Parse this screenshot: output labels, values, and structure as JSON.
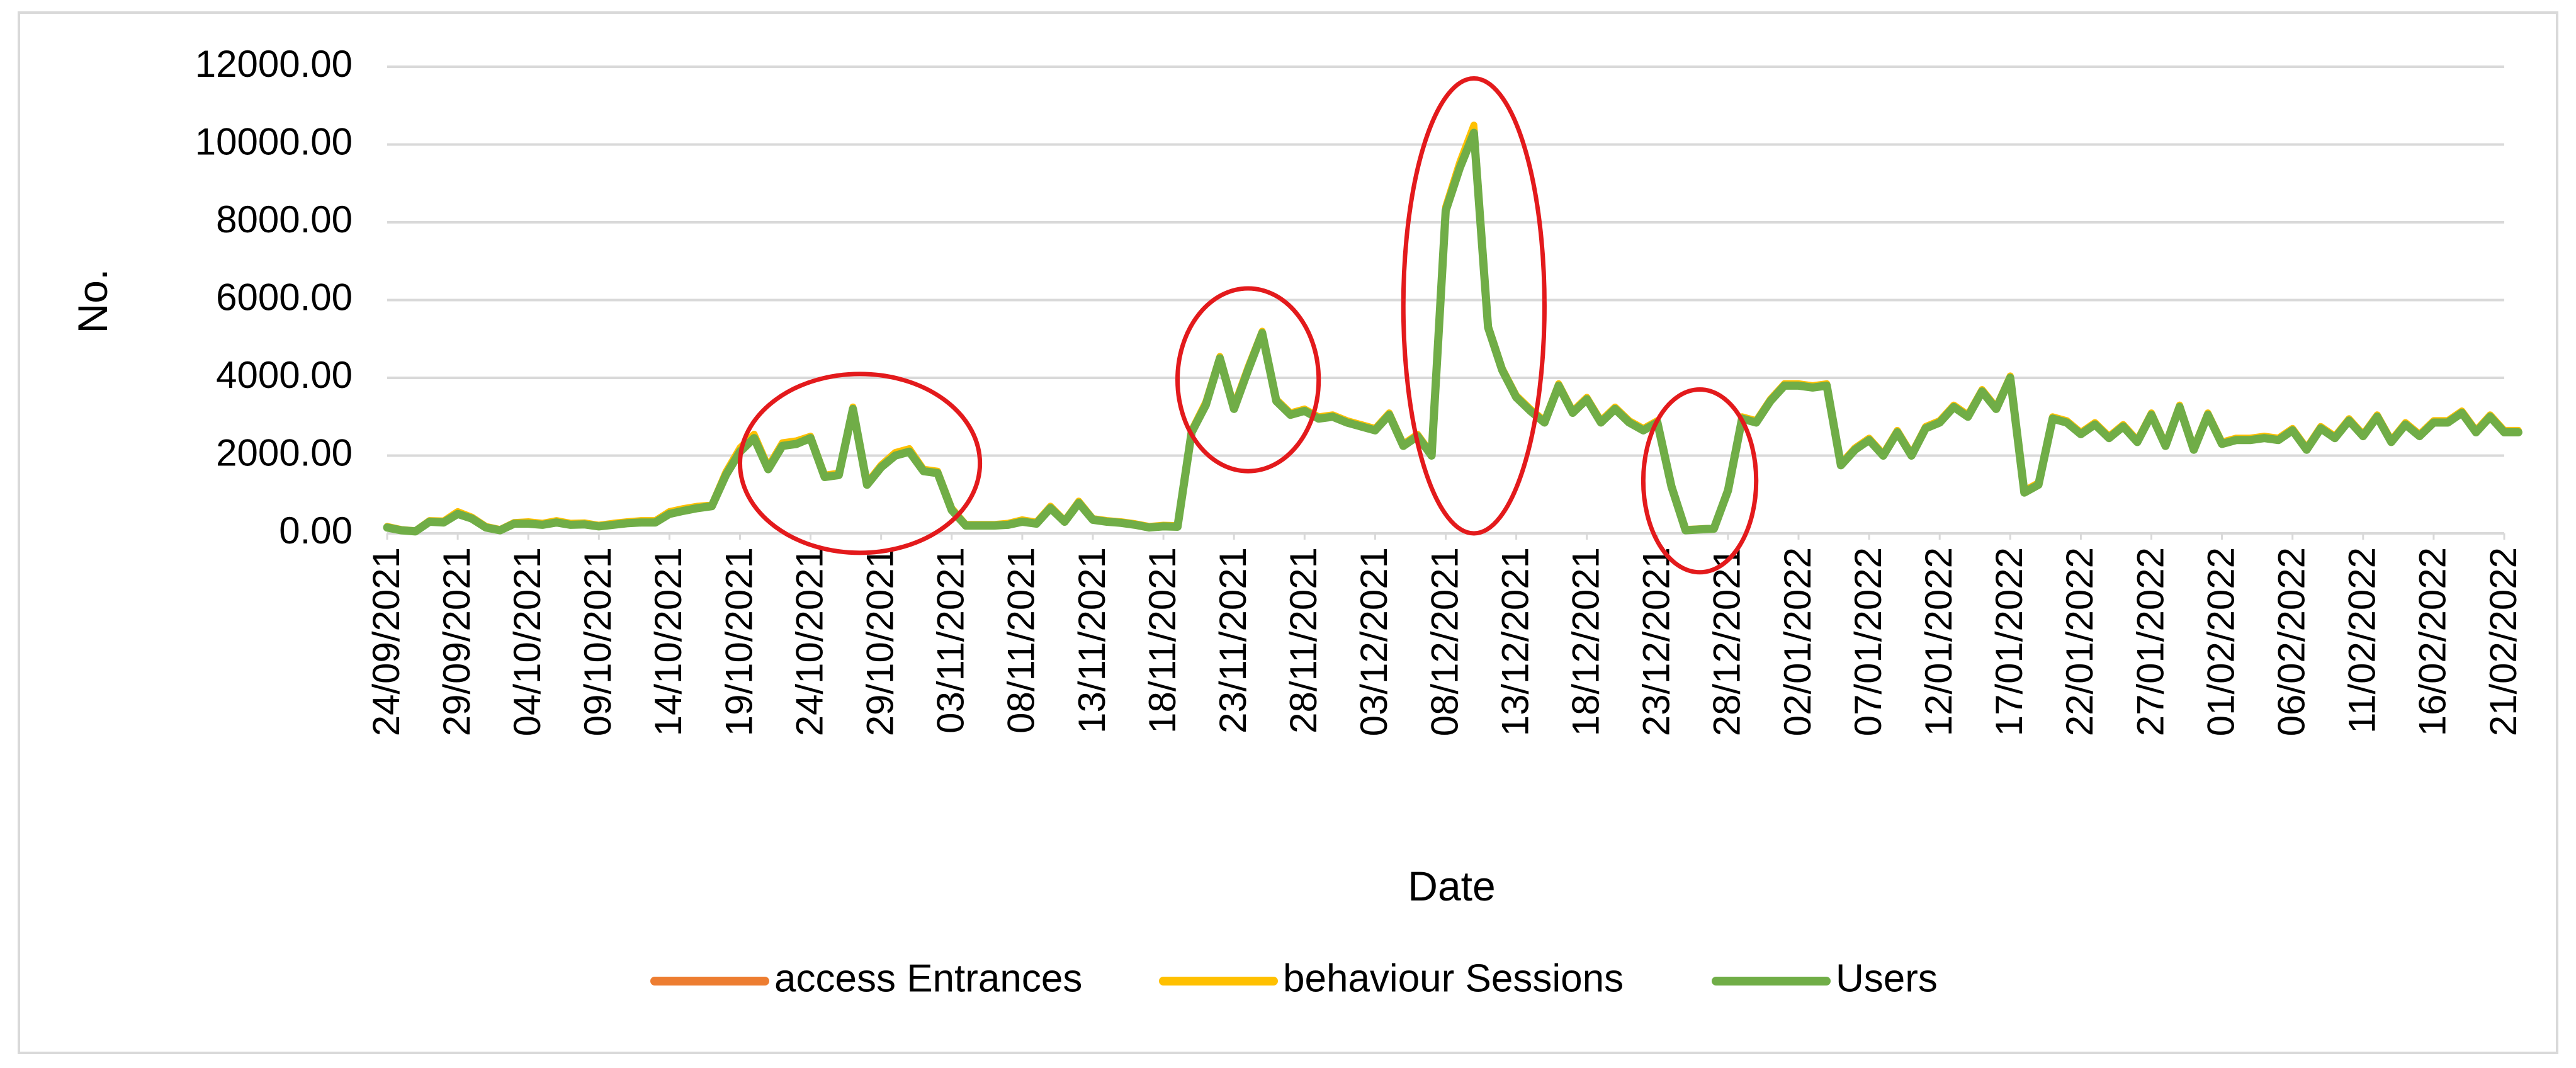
{
  "chart_data": {
    "type": "line",
    "xlabel": "Date",
    "ylabel": "No.",
    "ylim": [
      0,
      12000
    ],
    "y_ticks": [
      "0.00",
      "2000.00",
      "4000.00",
      "6000.00",
      "8000.00",
      "10000.00",
      "12000.00"
    ],
    "grid": "horizontal",
    "legend_position": "bottom",
    "x_tick_labels": [
      "24/09/2021",
      "29/09/2021",
      "04/10/2021",
      "09/10/2021",
      "14/10/2021",
      "19/10/2021",
      "24/10/2021",
      "29/10/2021",
      "03/11/2021",
      "08/11/2021",
      "13/11/2021",
      "18/11/2021",
      "23/11/2021",
      "28/11/2021",
      "03/12/2021",
      "08/12/2021",
      "13/12/2021",
      "18/12/2021",
      "23/12/2021",
      "28/12/2021",
      "02/01/2022",
      "07/01/2022",
      "12/01/2022",
      "17/01/2022",
      "22/01/2022",
      "27/01/2022",
      "01/02/2022",
      "06/02/2022",
      "11/02/2022",
      "16/02/2022",
      "21/02/2022"
    ],
    "x_start": "24/09/2021",
    "x_end": "21/02/2022",
    "series": [
      {
        "name": "access Entrances",
        "color": "#ed7d31",
        "values": [
          150,
          80,
          50,
          300,
          280,
          500,
          380,
          150,
          80,
          250,
          250,
          220,
          280,
          220,
          230,
          180,
          220,
          260,
          280,
          280,
          500,
          580,
          650,
          700,
          1500,
          2100,
          2450,
          1650,
          2250,
          2300,
          2450,
          1450,
          1500,
          3200,
          1250,
          1700,
          2000,
          2100,
          1600,
          1550,
          600,
          200,
          200,
          200,
          220,
          300,
          250,
          650,
          300,
          780,
          350,
          300,
          270,
          220,
          150,
          180,
          170,
          2600,
          3300,
          4500,
          3200,
          4200,
          5150,
          3400,
          3050,
          3150,
          2950,
          3000,
          2850,
          2750,
          2650,
          3050,
          2250,
          2500,
          2000,
          8300,
          9400,
          10350,
          5300,
          4200,
          3500,
          3150,
          2850,
          3800,
          3100,
          3450,
          2850,
          3200,
          2850,
          2650,
          2850,
          1200,
          80,
          100,
          120,
          1100,
          2950,
          2850,
          3400,
          3800,
          3800,
          3750,
          3800,
          1750,
          2150,
          2400,
          2000,
          2600,
          2000,
          2700,
          2850,
          3250,
          3000,
          3650,
          3200,
          4000,
          1050,
          1250,
          2950,
          2850,
          2550,
          2800,
          2450,
          2750,
          2350,
          3050,
          2250,
          3250,
          2150,
          3050,
          2300,
          2400,
          2400,
          2450,
          2400,
          2650,
          2150,
          2700,
          2450,
          2900,
          2500,
          3000,
          2350,
          2800,
          2500,
          2850,
          2850,
          3100,
          2600,
          3000,
          2600,
          2600
        ]
      },
      {
        "name": "behaviour Sessions",
        "color": "#ffc000",
        "values": [
          180,
          100,
          70,
          330,
          320,
          560,
          420,
          180,
          100,
          280,
          300,
          260,
          330,
          260,
          270,
          210,
          260,
          300,
          330,
          330,
          560,
          640,
          700,
          730,
          1580,
          2200,
          2550,
          1720,
          2330,
          2380,
          2500,
          1500,
          1550,
          3250,
          1300,
          1760,
          2080,
          2180,
          1650,
          1600,
          650,
          230,
          230,
          230,
          260,
          350,
          290,
          700,
          330,
          830,
          380,
          330,
          300,
          250,
          180,
          210,
          200,
          2650,
          3380,
          4550,
          3280,
          4280,
          5200,
          3450,
          3100,
          3200,
          3000,
          3050,
          2900,
          2800,
          2700,
          3100,
          2300,
          2550,
          2050,
          8400,
          9550,
          10500,
          5350,
          4250,
          3550,
          3200,
          2900,
          3850,
          3150,
          3500,
          2900,
          3250,
          2900,
          2700,
          2900,
          1250,
          100,
          120,
          140,
          1150,
          3000,
          2900,
          3450,
          3850,
          3850,
          3800,
          3850,
          1800,
          2200,
          2450,
          2050,
          2650,
          2050,
          2750,
          2900,
          3300,
          3050,
          3700,
          3250,
          4050,
          1100,
          1300,
          3000,
          2900,
          2600,
          2850,
          2500,
          2800,
          2400,
          3100,
          2300,
          3300,
          2200,
          3100,
          2350,
          2450,
          2450,
          2500,
          2450,
          2700,
          2200,
          2750,
          2500,
          2950,
          2550,
          3050,
          2400,
          2850,
          2550,
          2900,
          2900,
          3150,
          2650,
          3050,
          2650,
          2650
        ]
      },
      {
        "name": "Users",
        "color": "#70ad47",
        "values": [
          150,
          80,
          50,
          300,
          280,
          500,
          380,
          150,
          80,
          250,
          250,
          220,
          280,
          220,
          230,
          180,
          220,
          260,
          280,
          280,
          500,
          580,
          650,
          700,
          1500,
          2100,
          2450,
          1650,
          2250,
          2300,
          2450,
          1450,
          1500,
          3200,
          1250,
          1700,
          2000,
          2100,
          1600,
          1550,
          600,
          200,
          200,
          200,
          220,
          300,
          250,
          650,
          300,
          780,
          350,
          300,
          270,
          220,
          150,
          180,
          170,
          2600,
          3300,
          4500,
          3200,
          4200,
          5150,
          3400,
          3050,
          3150,
          2950,
          3000,
          2850,
          2750,
          2650,
          3050,
          2250,
          2500,
          2000,
          8300,
          9400,
          10300,
          5300,
          4200,
          3500,
          3150,
          2850,
          3800,
          3100,
          3450,
          2850,
          3200,
          2850,
          2650,
          2850,
          1200,
          80,
          100,
          120,
          1100,
          2950,
          2850,
          3400,
          3800,
          3800,
          3750,
          3800,
          1750,
          2150,
          2400,
          2000,
          2600,
          2000,
          2700,
          2850,
          3250,
          3000,
          3650,
          3200,
          4000,
          1050,
          1250,
          2950,
          2850,
          2550,
          2800,
          2450,
          2750,
          2350,
          3050,
          2250,
          3250,
          2150,
          3050,
          2300,
          2400,
          2400,
          2450,
          2400,
          2650,
          2150,
          2700,
          2450,
          2900,
          2500,
          3000,
          2350,
          2800,
          2500,
          2850,
          2850,
          3100,
          2600,
          3000,
          2600,
          2600
        ]
      }
    ],
    "annotations": [
      {
        "type": "ellipse",
        "color": "#e31a1c",
        "x_from": "19/10/2021",
        "x_to": "05/11/2021",
        "y_from": -500,
        "y_to": 4100
      },
      {
        "type": "ellipse",
        "color": "#e31a1c",
        "x_from": "19/11/2021",
        "x_to": "29/11/2021",
        "y_from": 1600,
        "y_to": 6300
      },
      {
        "type": "ellipse",
        "color": "#e31a1c",
        "x_from": "05/12/2021",
        "x_to": "15/12/2021",
        "y_from": 0,
        "y_to": 11700
      },
      {
        "type": "ellipse",
        "color": "#e31a1c",
        "x_from": "22/12/2021",
        "x_to": "30/12/2021",
        "y_from": -1000,
        "y_to": 3700
      }
    ]
  }
}
